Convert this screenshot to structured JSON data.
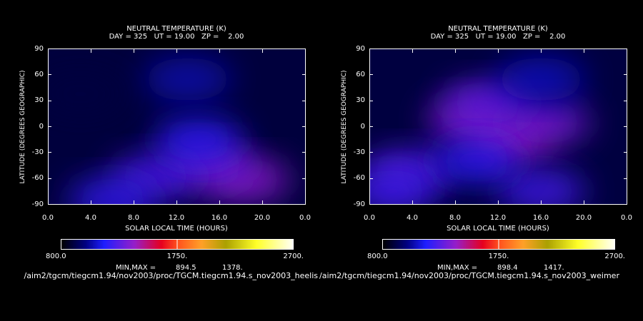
{
  "chart_data": [
    {
      "type": "heatmap",
      "title": "NEUTRAL TEMPERATURE (K)",
      "subtitle": "DAY = 325   UT = 19.00   ZP =    2.00",
      "xlabel": "SOLAR LOCAL TIME (HOURS)",
      "ylabel": "LATITUDE (DEGREES GEOGRAPHIC)",
      "x_tick_labels": [
        "0.0",
        "4.0",
        "8.0",
        "12.0",
        "16.0",
        "20.0",
        "0.0"
      ],
      "y_tick_labels": [
        "90",
        "60",
        "30",
        "0",
        "-30",
        "-60",
        "-90"
      ],
      "ylim": [
        -90,
        90
      ],
      "colorbar": {
        "min_label": "800.0",
        "mid_label": "1750.",
        "max_label": "2700.",
        "range": [
          800,
          2700
        ]
      },
      "minmax_label": "MIN,MAX =",
      "min_value": "894.5",
      "max_value": "1378.",
      "file_path": "/aim2/tgcm/tiegcm1.94/nov2003/proc/TGCM.tiegcm1.94.s_nov2003_heelis",
      "field_blobs": [
        {
          "lt": 18.5,
          "lat": -62,
          "temp": 1378
        },
        {
          "lt": 15.0,
          "lat": -45,
          "temp": 1320
        },
        {
          "lt": 10.0,
          "lat": -58,
          "temp": 1250
        },
        {
          "lt": 14.0,
          "lat": -15,
          "temp": 1180
        },
        {
          "lt": 6.0,
          "lat": -85,
          "temp": 1200
        },
        {
          "lt": 13.0,
          "lat": 55,
          "temp": 1060
        },
        {
          "lt": 3.0,
          "lat": 38,
          "temp": 900
        }
      ]
    },
    {
      "type": "heatmap",
      "title": "NEUTRAL TEMPERATURE (K)",
      "subtitle": "DAY = 325   UT = 19.00   ZP =    2.00",
      "xlabel": "SOLAR LOCAL TIME (HOURS)",
      "ylabel": "LATITUDE (DEGREES GEOGRAPHIC)",
      "x_tick_labels": [
        "0.0",
        "4.0",
        "8.0",
        "12.0",
        "16.0",
        "20.0",
        "0.0"
      ],
      "y_tick_labels": [
        "90",
        "60",
        "30",
        "0",
        "-30",
        "-60",
        "-90"
      ],
      "ylim": [
        -90,
        90
      ],
      "colorbar": {
        "min_label": "800.0",
        "mid_label": "1750.",
        "max_label": "2700.",
        "range": [
          800,
          2700
        ]
      },
      "minmax_label": "MIN,MAX =",
      "min_value": "898.4",
      "max_value": "1417.",
      "file_path": "/aim2/tgcm/tiegcm1.94/nov2003/proc/TGCM.tiegcm1.94.s_nov2003_weimer",
      "field_blobs": [
        {
          "lt": 13.0,
          "lat": -15,
          "temp": 1417
        },
        {
          "lt": 9.5,
          "lat": 8,
          "temp": 1360
        },
        {
          "lt": 16.5,
          "lat": 5,
          "temp": 1330
        },
        {
          "lt": 11.0,
          "lat": 28,
          "temp": 1290
        },
        {
          "lt": 3.5,
          "lat": -52,
          "temp": 1260
        },
        {
          "lt": 16.0,
          "lat": -75,
          "temp": 1230
        },
        {
          "lt": 2.0,
          "lat": -75,
          "temp": 1220
        },
        {
          "lt": 10.0,
          "lat": -40,
          "temp": 1180
        },
        {
          "lt": 16.0,
          "lat": 55,
          "temp": 1080
        }
      ]
    }
  ]
}
